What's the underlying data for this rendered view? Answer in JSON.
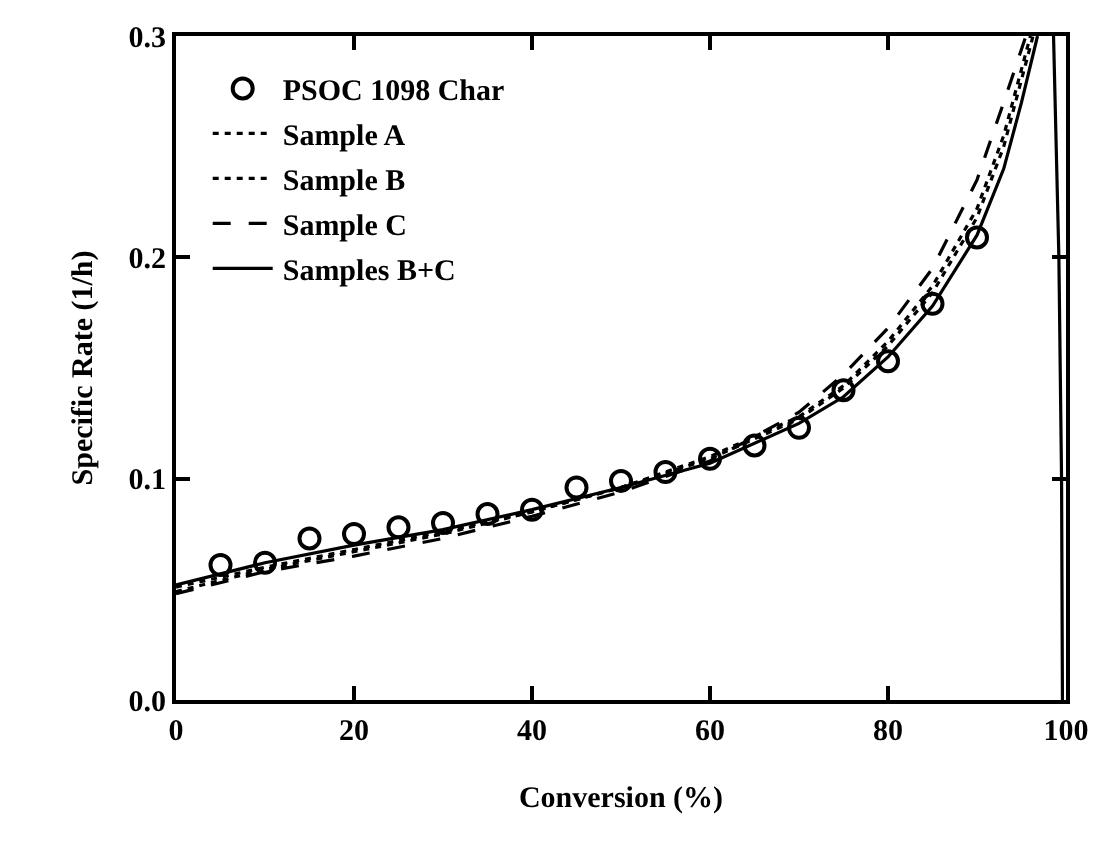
{
  "chart_data": {
    "type": "line",
    "xlabel": "Conversion (%)",
    "ylabel": "Specific Rate (1/h)",
    "xlim": [
      0,
      100
    ],
    "xticks": [
      0,
      20,
      40,
      60,
      80,
      100
    ],
    "ylim": [
      0,
      0.3
    ],
    "yticks": [
      {
        "value": 0,
        "label": "0.0"
      },
      0.1,
      0.2,
      0.3
    ],
    "grid": false,
    "legend": "top left",
    "series": [
      {
        "name": "PSOC 1098 Char",
        "type": "scatter",
        "marker": "circle",
        "color": "#000000",
        "x": [
          5,
          10,
          15,
          20,
          25,
          30,
          35,
          40,
          45,
          50,
          55,
          60,
          65,
          70,
          75,
          80,
          85,
          90
        ],
        "values": [
          0.061,
          0.062,
          0.073,
          0.075,
          0.078,
          0.08,
          0.084,
          0.086,
          0.096,
          0.099,
          0.103,
          0.109,
          0.115,
          0.123,
          0.14,
          0.153,
          0.179,
          0.209
        ]
      },
      {
        "name": "Sample A",
        "line_style": "dotted",
        "color": "#000000",
        "x": [
          0,
          10,
          20,
          30,
          40,
          50,
          60,
          70,
          75,
          80,
          85,
          90,
          93,
          96
        ],
        "values": [
          0.051,
          0.06,
          0.068,
          0.076,
          0.085,
          0.096,
          0.11,
          0.128,
          0.142,
          0.162,
          0.187,
          0.222,
          0.255,
          0.3
        ]
      },
      {
        "name": "Sample B",
        "line_style": "dotted",
        "color": "#000000",
        "x": [
          0,
          10,
          20,
          30,
          40,
          50,
          60,
          70,
          75,
          80,
          85,
          90,
          93,
          96.3
        ],
        "values": [
          0.049,
          0.059,
          0.067,
          0.075,
          0.085,
          0.096,
          0.109,
          0.127,
          0.141,
          0.16,
          0.184,
          0.218,
          0.25,
          0.3
        ]
      },
      {
        "name": "Sample C",
        "line_style": "dashed",
        "color": "#000000",
        "x": [
          0,
          10,
          20,
          30,
          40,
          50,
          60,
          70,
          75,
          80,
          85,
          90,
          93,
          95.5
        ],
        "values": [
          0.048,
          0.058,
          0.065,
          0.073,
          0.083,
          0.094,
          0.108,
          0.13,
          0.147,
          0.168,
          0.195,
          0.235,
          0.27,
          0.3
        ]
      },
      {
        "name": "Samples B+C",
        "line_style": "solid",
        "color": "#000000",
        "x": [
          0,
          10,
          20,
          30,
          40,
          50,
          60,
          70,
          75,
          80,
          85,
          90,
          93,
          95,
          96.8,
          97.5,
          98.6,
          99.2,
          99.5,
          99.6
        ],
        "values": [
          0.052,
          0.062,
          0.07,
          0.077,
          0.086,
          0.096,
          0.107,
          0.125,
          0.137,
          0.155,
          0.178,
          0.21,
          0.24,
          0.27,
          0.3,
          null,
          0.3,
          0.2,
          0.1,
          0
        ]
      }
    ]
  }
}
